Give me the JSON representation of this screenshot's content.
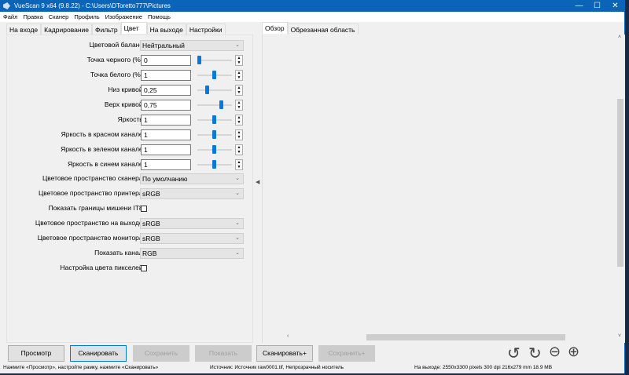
{
  "window": {
    "title": "VueScan 9 x64 (9.8.22) - C:\\Users\\DToretto777\\Pictures",
    "controls": [
      "—",
      "☐",
      "✕"
    ]
  },
  "menu": [
    "Файл",
    "Правка",
    "Сканер",
    "Профиль",
    "Изображение",
    "Помощь"
  ],
  "left_tabs": [
    {
      "label": "На входе"
    },
    {
      "label": "Кадрирование"
    },
    {
      "label": "Фильтр"
    },
    {
      "label": "Цвет",
      "active": true
    },
    {
      "label": "На выходе"
    },
    {
      "label": "Настройки"
    }
  ],
  "right_tabs": [
    {
      "label": "Обзор",
      "active": true
    },
    {
      "label": "Обрезанная область"
    }
  ],
  "color": {
    "balance": {
      "label": "Цветовой баланс:",
      "value": "Нейтральный"
    },
    "sliders": [
      {
        "label": "Точка черного (%):",
        "value": "0",
        "position": 0.0
      },
      {
        "label": "Точка белого (%):",
        "value": "1",
        "position": 0.48
      },
      {
        "label": "Низ кривой:",
        "value": "0,25",
        "position": 0.24
      },
      {
        "label": "Верх кривой:",
        "value": "0,75",
        "position": 0.7
      },
      {
        "label": "Яркость:",
        "value": "1",
        "position": 0.48
      },
      {
        "label": "Яркость в красном канале:",
        "value": "1",
        "position": 0.48
      },
      {
        "label": "Яркость в зеленом канале:",
        "value": "1",
        "position": 0.48
      },
      {
        "label": "Яркость в синем канале:",
        "value": "1",
        "position": 0.48
      }
    ],
    "scanner_space": {
      "label": "Цветовое пространство сканера:",
      "value": "По умолчанию"
    },
    "printer_space": {
      "label": "Цветовое пространство принтера:",
      "value": "sRGB"
    },
    "it8": {
      "label": "Показать границы мишени IT8:",
      "checked": false
    },
    "output_space": {
      "label": "Цветовое пространство на выходе:",
      "value": "sRGB"
    },
    "monitor_space": {
      "label": "Цветовое пространство монитора:",
      "value": "sRGB"
    },
    "channel": {
      "label": "Показать канал:",
      "value": "RGB"
    },
    "pixel_color": {
      "label": "Настройка цвета пикселей:",
      "checked": false
    }
  },
  "buttons": [
    {
      "label": "Просмотр",
      "state": "normal"
    },
    {
      "label": "Сканировать",
      "state": "default"
    },
    {
      "label": "Сохранить",
      "state": "disabled"
    },
    {
      "label": "Показать",
      "state": "disabled"
    },
    {
      "label": "Сканировать+",
      "state": "normal"
    },
    {
      "label": "Сохранить+",
      "state": "disabled"
    }
  ],
  "tools": [
    "rotate-left-icon",
    "rotate-right-icon",
    "zoom-out-icon",
    "zoom-in-icon"
  ],
  "status": {
    "hint": "Нажмите «Просмотр», настройте рамку, нажмите «Сканировать»",
    "source": "Источник: Источник raw0001.tif, Непрозрачный носитель",
    "output": "На выходе: 2550x3300 pixels 300 dpi 216x279 mm 18.9 MB"
  },
  "colors": {
    "titlebar": "#0a64b8",
    "slider": "#0a78d7",
    "default_border": "#0078d7"
  }
}
